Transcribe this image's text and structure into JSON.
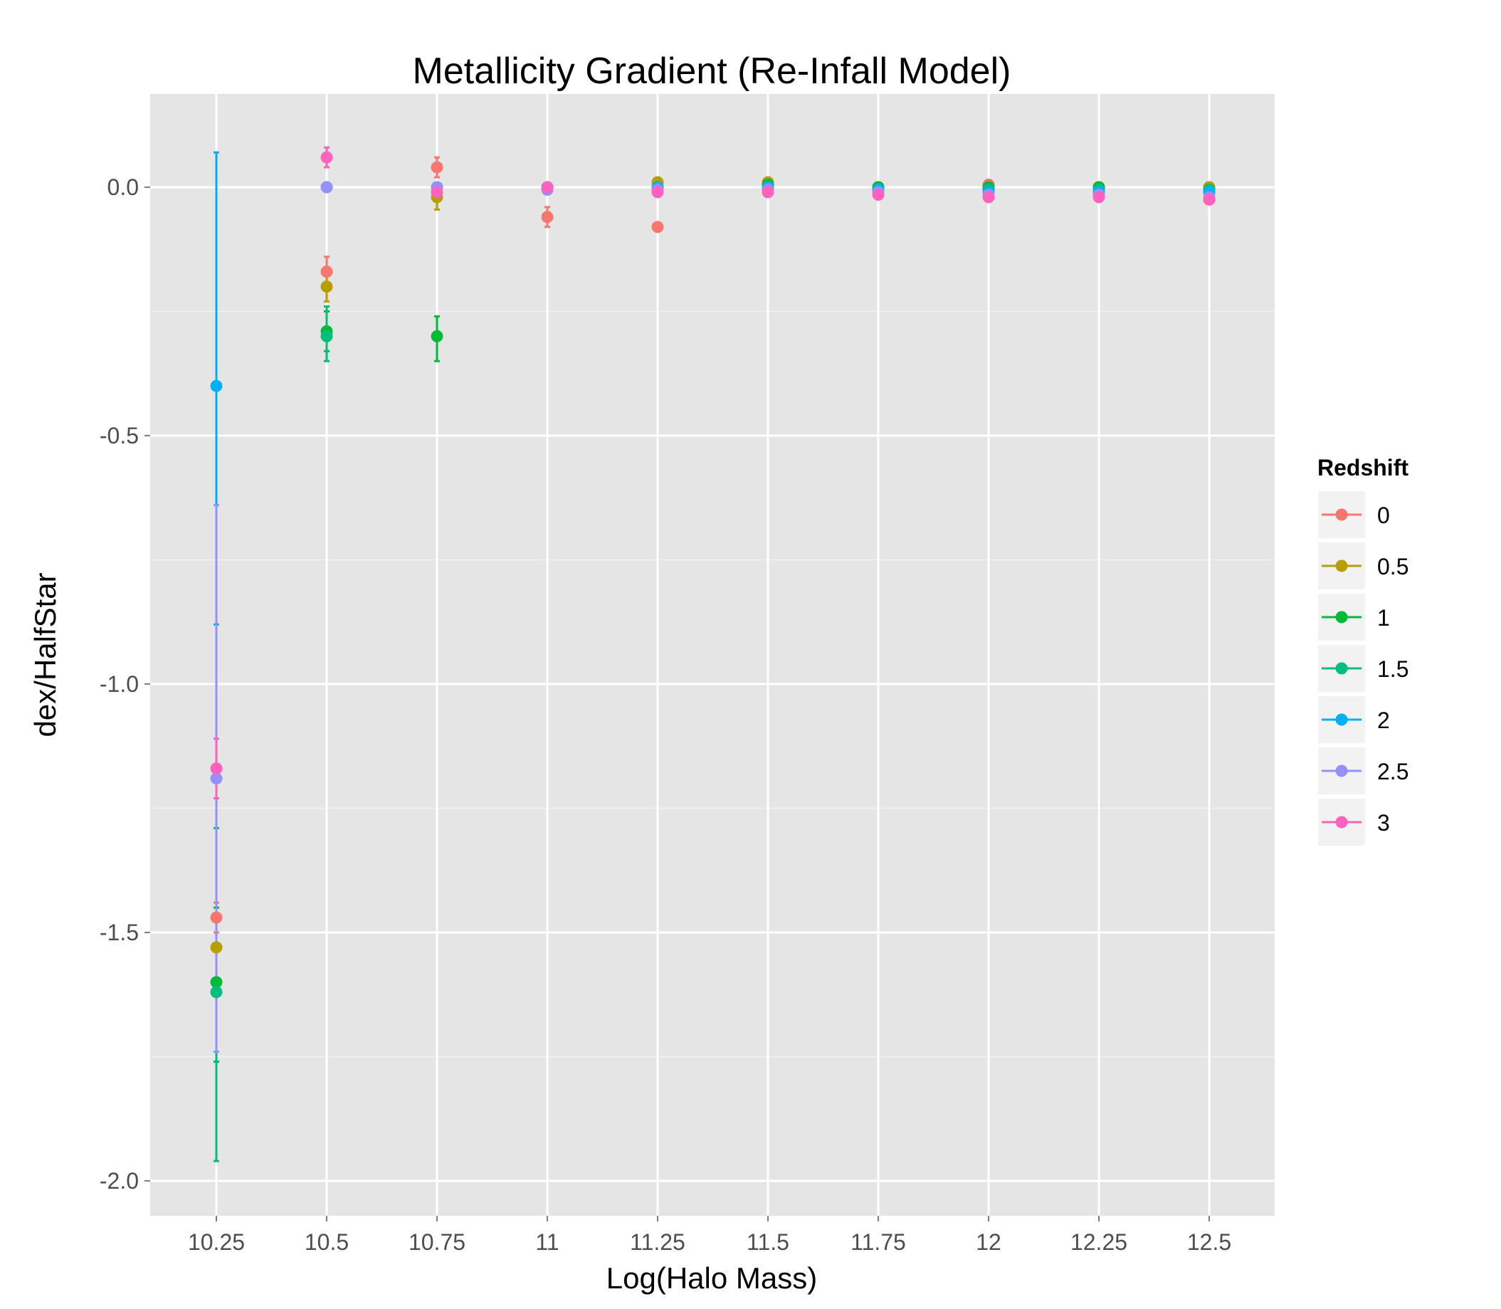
{
  "chart_data": {
    "type": "scatter",
    "title": "Metallicity Gradient (Re-Infall Model)",
    "xlabel": "Log(Halo Mass)",
    "ylabel": "dex/HalfStar",
    "x_categories": [
      "10.25",
      "10.5",
      "10.75",
      "11",
      "11.25",
      "11.5",
      "11.75",
      "12",
      "12.25",
      "12.5"
    ],
    "y_ticks": [
      "-2.0",
      "-1.5",
      "-1.0",
      "-0.5",
      "0.0"
    ],
    "ylim": [
      -2.07,
      0.18
    ],
    "grid": true,
    "error_bars": true,
    "legend": {
      "title": "Redshift",
      "position": "right"
    },
    "series": [
      {
        "name": "0",
        "color": "#F8766D",
        "points": [
          {
            "x": "10.25",
            "y": -1.47,
            "ymin": -1.5,
            "ymax": -1.44
          },
          {
            "x": "10.5",
            "y": -0.17,
            "ymin": -0.2,
            "ymax": -0.14
          },
          {
            "x": "10.75",
            "y": 0.04,
            "ymin": 0.02,
            "ymax": 0.06
          },
          {
            "x": "11",
            "y": -0.06,
            "ymin": -0.08,
            "ymax": -0.04
          },
          {
            "x": "11.25",
            "y": -0.08,
            "ymin": -0.08,
            "ymax": -0.08
          },
          {
            "x": "11.5",
            "y": 0.005,
            "ymin": 0.005,
            "ymax": 0.005
          },
          {
            "x": "11.75",
            "y": 0.0,
            "ymin": 0.0,
            "ymax": 0.0
          },
          {
            "x": "12",
            "y": 0.005,
            "ymin": 0.005,
            "ymax": 0.005
          },
          {
            "x": "12.25",
            "y": 0.0,
            "ymin": 0.0,
            "ymax": 0.0
          },
          {
            "x": "12.5",
            "y": 0.0,
            "ymin": 0.0,
            "ymax": 0.0
          }
        ]
      },
      {
        "name": "0.5",
        "color": "#B79F00",
        "points": [
          {
            "x": "10.25",
            "y": -1.53,
            "ymin": -1.6,
            "ymax": -1.47
          },
          {
            "x": "10.5",
            "y": -0.2,
            "ymin": -0.23,
            "ymax": -0.17
          },
          {
            "x": "10.75",
            "y": -0.02,
            "ymin": -0.045,
            "ymax": 0.0
          },
          {
            "x": "11",
            "y": 0.0,
            "ymin": 0.0,
            "ymax": 0.0
          },
          {
            "x": "11.25",
            "y": 0.01,
            "ymin": 0.01,
            "ymax": 0.01
          },
          {
            "x": "11.5",
            "y": 0.01,
            "ymin": 0.01,
            "ymax": 0.01
          },
          {
            "x": "11.75",
            "y": 0.0,
            "ymin": 0.0,
            "ymax": 0.0
          },
          {
            "x": "12",
            "y": 0.0,
            "ymin": 0.0,
            "ymax": 0.0
          },
          {
            "x": "12.25",
            "y": 0.0,
            "ymin": 0.0,
            "ymax": 0.0
          },
          {
            "x": "12.5",
            "y": 0.0,
            "ymin": 0.0,
            "ymax": 0.0
          }
        ]
      },
      {
        "name": "1",
        "color": "#00BA38",
        "points": [
          {
            "x": "10.25",
            "y": -1.6,
            "ymin": -1.76,
            "ymax": -1.45
          },
          {
            "x": "10.5",
            "y": -0.29,
            "ymin": -0.33,
            "ymax": -0.25
          },
          {
            "x": "10.75",
            "y": -0.3,
            "ymin": -0.35,
            "ymax": -0.26
          },
          {
            "x": "11",
            "y": 0.0,
            "ymin": 0.0,
            "ymax": 0.0
          },
          {
            "x": "11.25",
            "y": 0.0,
            "ymin": 0.0,
            "ymax": 0.0
          },
          {
            "x": "11.5",
            "y": 0.005,
            "ymin": 0.005,
            "ymax": 0.005
          },
          {
            "x": "11.75",
            "y": 0.0,
            "ymin": 0.0,
            "ymax": 0.0
          },
          {
            "x": "12",
            "y": 0.0,
            "ymin": 0.0,
            "ymax": 0.0
          },
          {
            "x": "12.25",
            "y": 0.0,
            "ymin": 0.0,
            "ymax": 0.0
          },
          {
            "x": "12.5",
            "y": -0.005,
            "ymin": -0.005,
            "ymax": -0.005
          }
        ]
      },
      {
        "name": "1.5",
        "color": "#00BF7D",
        "points": [
          {
            "x": "10.25",
            "y": -1.62,
            "ymin": -1.96,
            "ymax": -1.29
          },
          {
            "x": "10.5",
            "y": -0.3,
            "ymin": -0.35,
            "ymax": -0.24
          },
          {
            "x": "10.75",
            "y": -0.01,
            "ymin": -0.01,
            "ymax": -0.01
          },
          {
            "x": "11",
            "y": 0.0,
            "ymin": 0.0,
            "ymax": 0.0
          },
          {
            "x": "11.25",
            "y": 0.0,
            "ymin": 0.0,
            "ymax": 0.0
          },
          {
            "x": "11.5",
            "y": 0.0,
            "ymin": 0.0,
            "ymax": 0.0
          },
          {
            "x": "11.75",
            "y": -0.005,
            "ymin": -0.005,
            "ymax": -0.005
          },
          {
            "x": "12",
            "y": -0.005,
            "ymin": -0.005,
            "ymax": -0.005
          },
          {
            "x": "12.25",
            "y": -0.005,
            "ymin": -0.005,
            "ymax": -0.005
          },
          {
            "x": "12.5",
            "y": -0.005,
            "ymin": -0.005,
            "ymax": -0.005
          }
        ]
      },
      {
        "name": "2",
        "color": "#00B0F6",
        "points": [
          {
            "x": "10.25",
            "y": -0.4,
            "ymin": -0.88,
            "ymax": 0.07
          },
          {
            "x": "10.5",
            "y": 0.0,
            "ymin": 0.0,
            "ymax": 0.0
          },
          {
            "x": "10.75",
            "y": 0.0,
            "ymin": 0.0,
            "ymax": 0.0
          },
          {
            "x": "11",
            "y": 0.0,
            "ymin": 0.0,
            "ymax": 0.0
          },
          {
            "x": "11.25",
            "y": 0.0,
            "ymin": 0.0,
            "ymax": 0.0
          },
          {
            "x": "11.5",
            "y": 0.0,
            "ymin": 0.0,
            "ymax": 0.0
          },
          {
            "x": "11.75",
            "y": -0.005,
            "ymin": -0.005,
            "ymax": -0.005
          },
          {
            "x": "12",
            "y": -0.01,
            "ymin": -0.01,
            "ymax": -0.01
          },
          {
            "x": "12.25",
            "y": -0.01,
            "ymin": -0.01,
            "ymax": -0.01
          },
          {
            "x": "12.5",
            "y": -0.01,
            "ymin": -0.01,
            "ymax": -0.01
          }
        ]
      },
      {
        "name": "2.5",
        "color": "#9590FF",
        "points": [
          {
            "x": "10.25",
            "y": -1.19,
            "ymin": -1.74,
            "ymax": -0.64
          },
          {
            "x": "10.5",
            "y": 0.0,
            "ymin": 0.0,
            "ymax": 0.0
          },
          {
            "x": "10.75",
            "y": 0.0,
            "ymin": 0.0,
            "ymax": 0.0
          },
          {
            "x": "11",
            "y": -0.005,
            "ymin": -0.005,
            "ymax": -0.005
          },
          {
            "x": "11.25",
            "y": -0.005,
            "ymin": -0.005,
            "ymax": -0.005
          },
          {
            "x": "11.5",
            "y": -0.005,
            "ymin": -0.005,
            "ymax": -0.005
          },
          {
            "x": "11.75",
            "y": -0.01,
            "ymin": -0.01,
            "ymax": -0.01
          },
          {
            "x": "12",
            "y": -0.015,
            "ymin": -0.015,
            "ymax": -0.015
          },
          {
            "x": "12.25",
            "y": -0.015,
            "ymin": -0.015,
            "ymax": -0.015
          },
          {
            "x": "12.5",
            "y": -0.02,
            "ymin": -0.02,
            "ymax": -0.02
          }
        ]
      },
      {
        "name": "3",
        "color": "#FF62BC",
        "points": [
          {
            "x": "10.25",
            "y": -1.17,
            "ymin": -1.23,
            "ymax": -1.11
          },
          {
            "x": "10.5",
            "y": 0.06,
            "ymin": 0.04,
            "ymax": 0.08
          },
          {
            "x": "10.75",
            "y": -0.01,
            "ymin": -0.01,
            "ymax": -0.01
          },
          {
            "x": "11",
            "y": 0.0,
            "ymin": 0.0,
            "ymax": 0.0
          },
          {
            "x": "11.25",
            "y": -0.01,
            "ymin": -0.01,
            "ymax": -0.01
          },
          {
            "x": "11.5",
            "y": -0.01,
            "ymin": -0.01,
            "ymax": -0.01
          },
          {
            "x": "11.75",
            "y": -0.015,
            "ymin": -0.015,
            "ymax": -0.015
          },
          {
            "x": "12",
            "y": -0.02,
            "ymin": -0.02,
            "ymax": -0.02
          },
          {
            "x": "12.25",
            "y": -0.02,
            "ymin": -0.02,
            "ymax": -0.02
          },
          {
            "x": "12.5",
            "y": -0.025,
            "ymin": -0.025,
            "ymax": -0.025
          }
        ]
      }
    ]
  }
}
